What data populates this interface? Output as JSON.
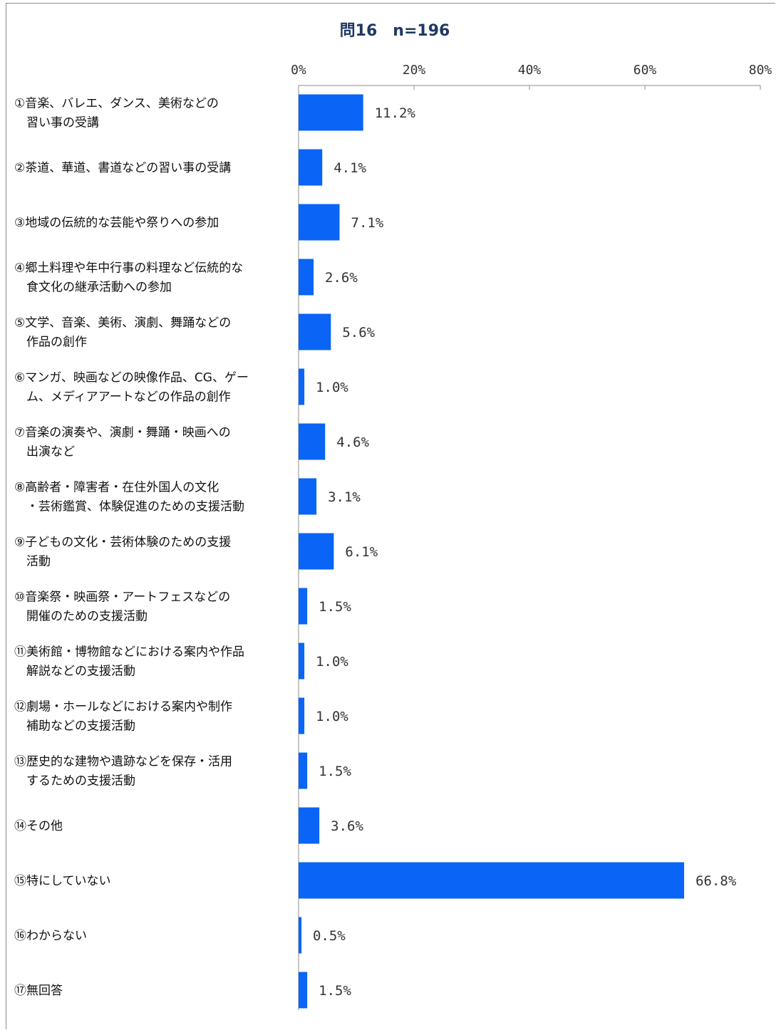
{
  "chart_data": {
    "type": "bar",
    "orientation": "horizontal",
    "title": "問16　n=196",
    "xlim": [
      0,
      80
    ],
    "x_ticks": [
      "0%",
      "20%",
      "40%",
      "60%",
      "80%"
    ],
    "x_tick_values": [
      0,
      20,
      40,
      60,
      80
    ],
    "axis_position": "top",
    "grid": false,
    "bar_color": "#0a64f5",
    "categories": [
      [
        "①音楽、バレエ、ダンス、美術などの",
        "　習い事の受講"
      ],
      [
        "②茶道、華道、書道などの習い事の受講"
      ],
      [
        "③地域の伝統的な芸能や祭りへの参加"
      ],
      [
        "④郷土料理や年中行事の料理など伝統的な",
        "　食文化の継承活動への参加"
      ],
      [
        "⑤文学、音楽、美術、演劇、舞踊などの",
        "　作品の創作"
      ],
      [
        "⑥マンガ、映画などの映像作品、CG、ゲー",
        "　ム、メディアアートなどの作品の創作"
      ],
      [
        "⑦音楽の演奏や、演劇・舞踊・映画への",
        "　出演など"
      ],
      [
        "⑧高齢者・障害者・在住外国人の文化",
        "　・芸術鑑賞、体験促進のための支援活動"
      ],
      [
        "⑨子どもの文化・芸術体験のための支援",
        "　活動"
      ],
      [
        "⑩音楽祭・映画祭・アートフェスなどの",
        "　開催のための支援活動"
      ],
      [
        "⑪美術館・博物館などにおける案内や作品",
        "　解説などの支援活動"
      ],
      [
        "⑫劇場・ホールなどにおける案内や制作",
        "　補助などの支援活動"
      ],
      [
        "⑬歴史的な建物や遺跡などを保存・活用",
        "　するための支援活動"
      ],
      [
        "⑭その他"
      ],
      [
        "⑮特にしていない"
      ],
      [
        "⑯わからない"
      ],
      [
        "⑰無回答"
      ]
    ],
    "values": [
      11.2,
      4.1,
      7.1,
      2.6,
      5.6,
      1.0,
      4.6,
      3.1,
      6.1,
      1.5,
      1.0,
      1.0,
      1.5,
      3.6,
      66.8,
      0.5,
      1.5
    ],
    "value_labels": [
      "11.2%",
      "4.1%",
      "7.1%",
      "2.6%",
      "5.6%",
      "1.0%",
      "4.6%",
      "3.1%",
      "6.1%",
      "1.5%",
      "1.0%",
      "1.0%",
      "1.5%",
      "3.6%",
      "66.8%",
      "0.5%",
      "1.5%"
    ]
  }
}
